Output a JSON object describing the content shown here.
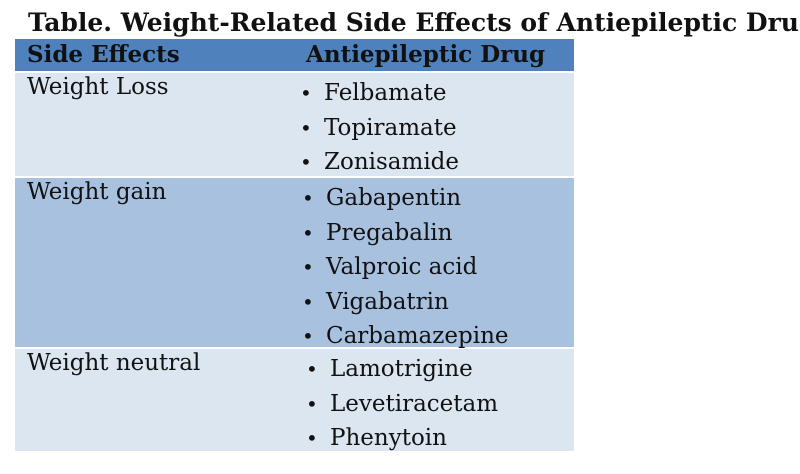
{
  "title": "Table. Weight-Related Side Effects of Antiepileptic Drugs",
  "header": {
    "side_effects": "Side Effects",
    "drug": "Antiepileptic Drug"
  },
  "bullet": "•",
  "groups": [
    {
      "side_effect": "Weight Loss",
      "drugs": [
        "Felbamate",
        "Topiramate",
        "Zonisamide"
      ]
    },
    {
      "side_effect": "Weight gain",
      "drugs": [
        "Gabapentin",
        "Pregabalin",
        "Valproic acid",
        "Vigabatrin",
        "Carbamazepine"
      ]
    },
    {
      "side_effect": "Weight neutral",
      "drugs": [
        "Lamotrigine",
        "Levetiracetam",
        "Phenytoin"
      ]
    }
  ],
  "colors": {
    "header_bg": "#4f81bd",
    "light_row": "#dce6f1",
    "dark_row": "#a8c1df"
  }
}
